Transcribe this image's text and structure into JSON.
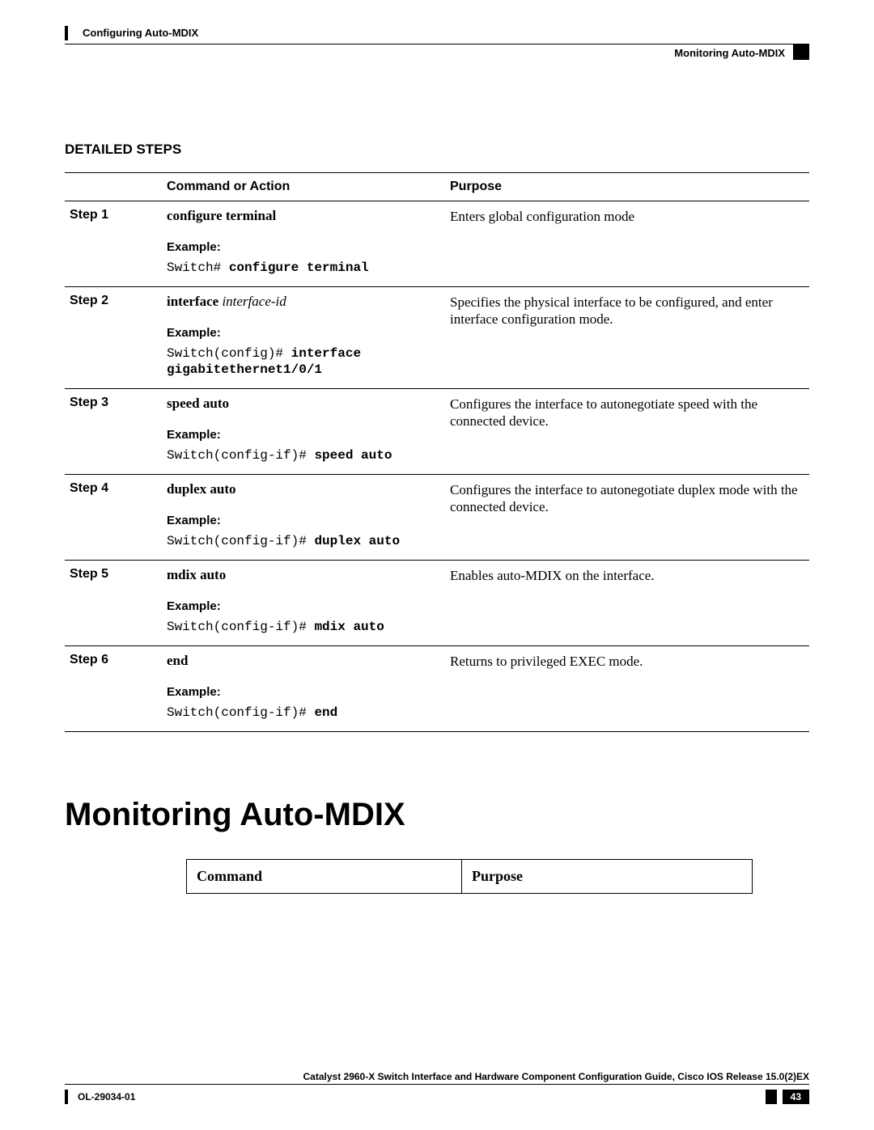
{
  "header": {
    "leftLabel": "Configuring Auto-MDIX",
    "rightLabel": "Monitoring Auto-MDIX"
  },
  "detailed": {
    "title": "DETAILED STEPS",
    "columns": {
      "c1": "",
      "c2": "Command or Action",
      "c3": "Purpose"
    },
    "steps": [
      {
        "label": "Step 1",
        "command": "configure terminal",
        "commandArg": "",
        "exampleLabel": "Example:",
        "examplePrompt": "Switch# ",
        "exampleCmd": "configure terminal",
        "purpose": "Enters global configuration mode"
      },
      {
        "label": "Step 2",
        "command": "interface ",
        "commandArg": "interface-id",
        "exampleLabel": "Example:",
        "examplePrompt": "Switch(config)# ",
        "exampleCmd": "interface gigabitethernet1/0/1",
        "purpose": "Specifies the physical interface to be configured, and enter interface configuration mode."
      },
      {
        "label": "Step 3",
        "command": "speed  auto",
        "commandArg": "",
        "exampleLabel": "Example:",
        "examplePrompt": "Switch(config-if)# ",
        "exampleCmd": "speed auto",
        "purpose": "Configures the interface to autonegotiate speed with the connected device."
      },
      {
        "label": "Step 4",
        "command": "duplex  auto",
        "commandArg": "",
        "exampleLabel": "Example:",
        "examplePrompt": "Switch(config-if)# ",
        "exampleCmd": "duplex auto",
        "purpose": "Configures the interface to autonegotiate duplex mode with the connected device."
      },
      {
        "label": "Step 5",
        "command": "mdix auto",
        "commandArg": "",
        "exampleLabel": "Example:",
        "examplePrompt": "Switch(config-if)# ",
        "exampleCmd": "mdix auto",
        "purpose": "Enables auto-MDIX on the interface."
      },
      {
        "label": "Step 6",
        "command": "end",
        "commandArg": "",
        "exampleLabel": "Example:",
        "examplePrompt": "Switch(config-if)# ",
        "exampleCmd": "end",
        "purpose": "Returns to privileged EXEC mode."
      }
    ]
  },
  "monitoring": {
    "heading": "Monitoring Auto-MDIX",
    "columns": {
      "c1": "Command",
      "c2": "Purpose"
    }
  },
  "footer": {
    "title": "Catalyst 2960-X Switch Interface and Hardware Component Configuration Guide, Cisco IOS Release 15.0(2)EX",
    "docId": "OL-29034-01",
    "page": "43"
  }
}
